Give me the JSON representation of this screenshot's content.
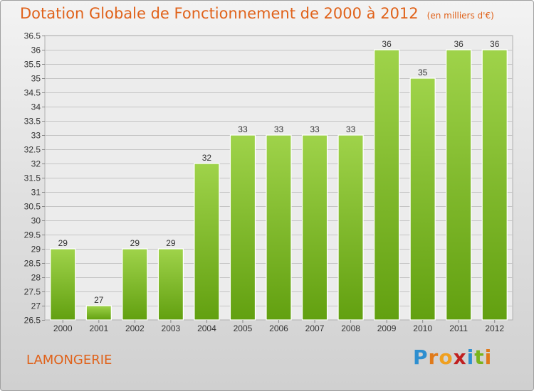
{
  "title": "Dotation Globale de Fonctionnement de 2000 à 2012",
  "subtitle": "(en milliers d'€)",
  "commune": "LAMONGERIE",
  "logo": {
    "letters": [
      "P",
      "r",
      "o",
      "x",
      "i",
      "t",
      "i"
    ],
    "colors": [
      "#2e8fd0",
      "#e07a1a",
      "#f0a020",
      "#c02020",
      "#2e8fd0",
      "#7ab41c",
      "#e07a1a"
    ]
  },
  "colors": {
    "accent": "#e0621a",
    "bar_light": "#9fd34a",
    "bar_dark": "#62a010"
  },
  "chart_data": {
    "type": "bar",
    "categories": [
      "2000",
      "2001",
      "2002",
      "2003",
      "2004",
      "2005",
      "2006",
      "2007",
      "2008",
      "2009",
      "2010",
      "2011",
      "2012"
    ],
    "values": [
      29,
      27,
      29,
      29,
      32,
      33,
      33,
      33,
      33,
      36,
      35,
      36,
      36
    ],
    "data_labels": [
      "29",
      "27",
      "29",
      "29",
      "32",
      "33",
      "33",
      "33",
      "33",
      "36",
      "35",
      "36",
      "36"
    ],
    "ylim": [
      26.5,
      36.5
    ],
    "yticks": [
      26.5,
      27,
      27.5,
      28,
      28.5,
      29,
      29.5,
      30,
      30.5,
      31,
      31.5,
      32,
      32.5,
      33,
      33.5,
      34,
      34.5,
      35,
      35.5,
      36,
      36.5
    ],
    "ytick_labels": [
      "26.5",
      "27",
      "27.5",
      "28",
      "28.5",
      "29",
      "29.5",
      "30",
      "30.5",
      "31",
      "31.5",
      "32",
      "32.5",
      "33",
      "33.5",
      "34",
      "34.5",
      "35",
      "35.5",
      "36",
      "36.5"
    ],
    "grid": true,
    "xlabel": "",
    "ylabel": ""
  }
}
